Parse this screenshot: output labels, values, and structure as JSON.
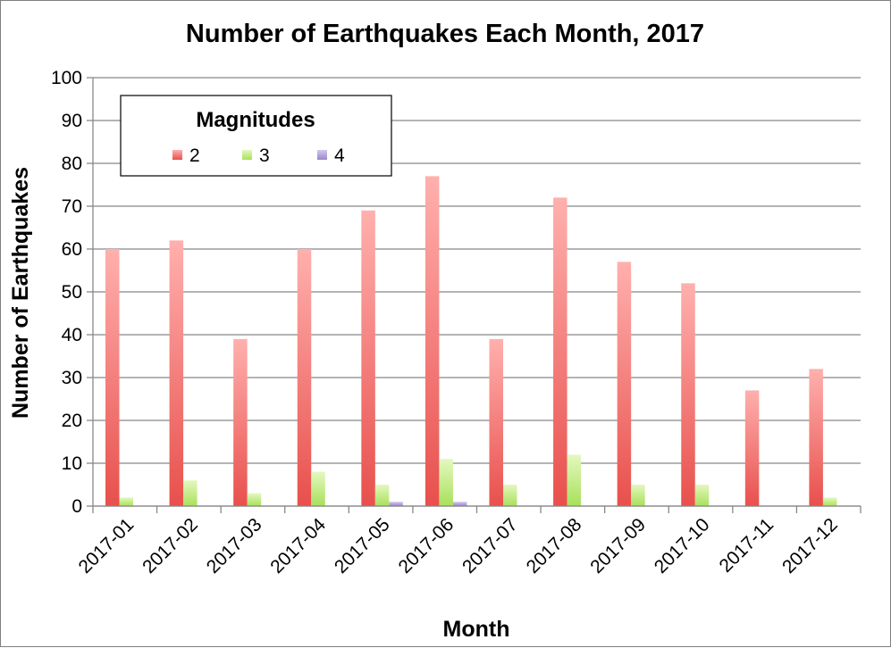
{
  "chart_data": {
    "type": "bar",
    "title": "Number of Earthquakes Each Month, 2017",
    "xlabel": "Month",
    "ylabel": "Number of Earthquakes",
    "ylim": [
      0,
      100
    ],
    "yticks": [
      0,
      10,
      20,
      30,
      40,
      50,
      60,
      70,
      80,
      90,
      100
    ],
    "grid": true,
    "legend": {
      "title": "Magnitudes",
      "placement": "top-left"
    },
    "categories": [
      "2017-01",
      "2017-02",
      "2017-03",
      "2017-04",
      "2017-05",
      "2017-06",
      "2017-07",
      "2017-08",
      "2017-09",
      "2017-10",
      "2017-11",
      "2017-12"
    ],
    "series": [
      {
        "name": "2",
        "color": "#e8504c",
        "color_light": "#ffb0ae",
        "values": [
          60,
          62,
          39,
          60,
          69,
          77,
          39,
          72,
          57,
          52,
          27,
          32
        ]
      },
      {
        "name": "3",
        "color": "#a8e05a",
        "color_light": "#e4f8bf",
        "values": [
          2,
          6,
          3,
          8,
          5,
          11,
          5,
          12,
          5,
          5,
          0,
          2
        ]
      },
      {
        "name": "4",
        "color": "#9a86c8",
        "color_light": "#d4c8ee",
        "values": [
          0,
          0,
          0,
          0,
          1,
          1,
          0,
          0,
          0,
          0,
          0,
          0
        ]
      }
    ]
  }
}
